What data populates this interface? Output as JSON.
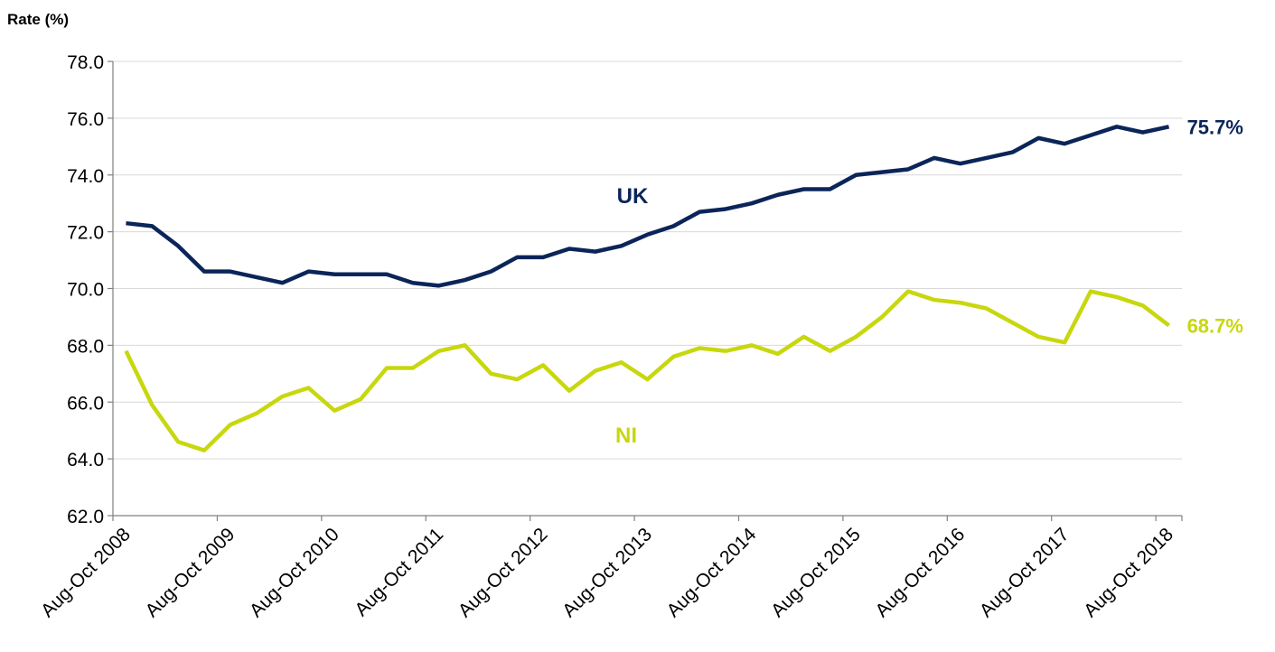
{
  "chart_data": {
    "type": "line",
    "ylabel": "Rate (%)",
    "categories": [
      "Aug-Oct 2008",
      null,
      null,
      null,
      "Aug-Oct 2009",
      null,
      null,
      null,
      "Aug-Oct 2010",
      null,
      null,
      null,
      "Aug-Oct 2011",
      null,
      null,
      null,
      "Aug-Oct 2012",
      null,
      null,
      null,
      "Aug-Oct 2013",
      null,
      null,
      null,
      "Aug-Oct 2014",
      null,
      null,
      null,
      "Aug-Oct 2015",
      null,
      null,
      null,
      "Aug-Oct 2016",
      null,
      null,
      null,
      "Aug-Oct 2017",
      null,
      null,
      null,
      "Aug-Oct 2018"
    ],
    "series": [
      {
        "name": "UK",
        "color": "#0b2559",
        "values": [
          72.3,
          72.2,
          71.5,
          70.6,
          70.6,
          70.4,
          70.2,
          70.6,
          70.5,
          70.5,
          70.5,
          70.2,
          70.1,
          70.3,
          70.6,
          71.1,
          71.1,
          71.4,
          71.3,
          71.5,
          71.9,
          72.2,
          72.7,
          72.8,
          73.0,
          73.3,
          73.5,
          73.5,
          74.0,
          74.1,
          74.2,
          74.6,
          74.4,
          74.6,
          74.8,
          75.3,
          75.1,
          75.4,
          75.7,
          75.5,
          75.7
        ],
        "value_labels": [
          null,
          null,
          null,
          null,
          null,
          null,
          null,
          null,
          null,
          null,
          null,
          null,
          null,
          null,
          null,
          null,
          null,
          null,
          null,
          null,
          null,
          null,
          null,
          null,
          null,
          null,
          null,
          null,
          null,
          null,
          null,
          null,
          null,
          null,
          null,
          null,
          null,
          null,
          null,
          null,
          "75.7%"
        ]
      },
      {
        "name": "NI",
        "color": "#c8d70e",
        "values": [
          67.8,
          65.9,
          64.6,
          64.3,
          65.2,
          65.6,
          66.2,
          66.5,
          65.7,
          66.1,
          67.2,
          67.2,
          67.8,
          68.0,
          67.0,
          66.8,
          67.3,
          66.4,
          67.1,
          67.4,
          66.8,
          67.6,
          67.9,
          67.8,
          68.0,
          67.7,
          68.3,
          67.8,
          68.3,
          69.0,
          69.9,
          69.6,
          69.5,
          69.3,
          68.8,
          68.3,
          68.1,
          69.9,
          69.7,
          69.4,
          68.7
        ],
        "value_labels": [
          null,
          null,
          null,
          null,
          null,
          null,
          null,
          null,
          null,
          null,
          null,
          null,
          null,
          null,
          null,
          null,
          null,
          null,
          null,
          null,
          null,
          null,
          null,
          null,
          null,
          null,
          null,
          null,
          null,
          null,
          null,
          null,
          null,
          null,
          null,
          null,
          null,
          null,
          null,
          null,
          "68.7%"
        ]
      }
    ],
    "ylim": [
      62,
      78
    ],
    "yticks": [
      {
        "value": 62,
        "label": "62.0"
      },
      {
        "value": 64,
        "label": "64.0"
      },
      {
        "value": 66,
        "label": "66.0"
      },
      {
        "value": 68,
        "label": "68.0"
      },
      {
        "value": 70,
        "label": "70.0"
      },
      {
        "value": 72,
        "label": "72.0"
      },
      {
        "value": 74,
        "label": "74.0"
      },
      {
        "value": 76,
        "label": "76.0"
      },
      {
        "value": 78,
        "label": "78.0"
      }
    ],
    "grid": true
  }
}
